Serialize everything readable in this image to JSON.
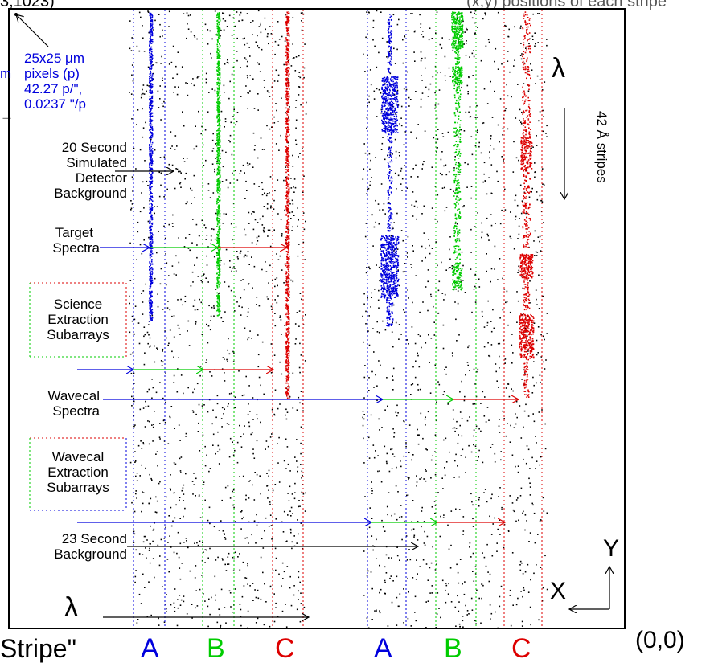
{
  "top_fragment": "3,1023)",
  "top_fragment_right": "(x,y) positions of each stripe",
  "left_fragment": "m",
  "left_arrow_glyph": "→",
  "pixel_note": {
    "line1": "25x25 μm",
    "line2": "pixels (p)",
    "line3": "42.27 p/\",",
    "line4": "0.0237 \"/p"
  },
  "labels": {
    "detector_bg": [
      "20 Second",
      "Simulated",
      "Detector",
      "Background"
    ],
    "target": [
      "Target",
      "Spectra"
    ],
    "science_sub": [
      "Science",
      "Extraction",
      "Subarrays"
    ],
    "wavecal": [
      "Wavecal",
      "Spectra"
    ],
    "wavecal_sub": [
      "Wavecal",
      "Extraction",
      "Subarrays"
    ],
    "bg23": [
      "23 Second",
      "Background"
    ],
    "lambda_bottom": "λ",
    "lambda_right": "λ",
    "stripes_right": "42 Å stripes",
    "axis_x": "X",
    "axis_y": "Y"
  },
  "bottom": {
    "stripe_label": "Stripe\"",
    "letters": [
      "A",
      "B",
      "C",
      "A",
      "B",
      "C"
    ],
    "origin": "(0,0)"
  },
  "colors": {
    "a": "#0000dd",
    "b": "#00cc00",
    "c": "#dd0000",
    "frame": "#000000"
  }
}
